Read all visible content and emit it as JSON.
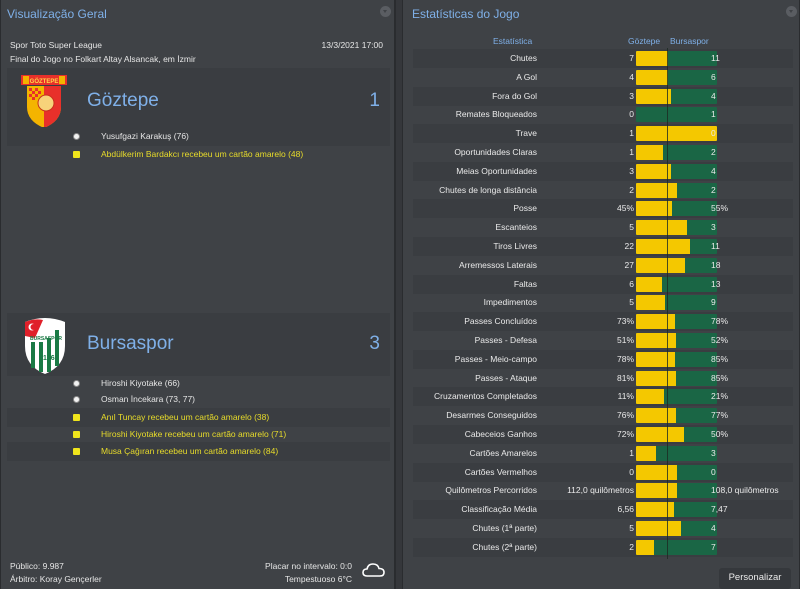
{
  "left_panel": {
    "title": "Visualização Geral",
    "competition": "Spor Toto Super League",
    "datetime": "13/3/2021 17:00",
    "venue": "Final do Jogo no Folkart Altay Alsancak, em İzmir",
    "home": {
      "name": "Göztepe",
      "score": "1",
      "logo": "goztepe-crest",
      "events": [
        {
          "type": "goal",
          "icon": "ball-icon",
          "text": "Yusufgazi Karakuş (76)"
        },
        {
          "type": "yellow-card",
          "icon": "yellow-card-icon",
          "text": "Abdülkerim Bardakcı recebeu um cartão amarelo (48)"
        }
      ]
    },
    "away": {
      "name": "Bursaspor",
      "score": "3",
      "logo": "bursaspor-crest",
      "events": [
        {
          "type": "goal",
          "icon": "ball-icon",
          "text": "Hiroshi Kiyotake (66)"
        },
        {
          "type": "goal",
          "icon": "ball-icon",
          "text": "Osman İncekara (73, 77)"
        },
        {
          "type": "yellow-card",
          "icon": "yellow-card-icon",
          "text": "Anıl Tuncay recebeu um cartão amarelo (38)"
        },
        {
          "type": "yellow-card",
          "icon": "yellow-card-icon",
          "text": "Hiroshi Kiyotake recebeu um cartão amarelo (71)"
        },
        {
          "type": "yellow-card",
          "icon": "yellow-card-icon",
          "text": "Musa Çağıran recebeu um cartão amarelo (84)"
        }
      ]
    },
    "footer": {
      "attendance": "Público: 9.987",
      "referee": "Árbitro: Koray Gençerler",
      "halftime": "Placar no intervalo: 0:0",
      "weather": "Tempestuoso 6°C",
      "weather_icon": "cloud-icon"
    }
  },
  "right_panel": {
    "title": "Estatísticas do Jogo",
    "header": {
      "stat": "Estatística",
      "home": "Göztepe",
      "away": "Bursaspor"
    },
    "colors": {
      "home": "#f4c800",
      "away": "#1a6645"
    },
    "stats": [
      {
        "label": "Chutes",
        "home": "7",
        "away": "11",
        "ratio": 0.389
      },
      {
        "label": "A Gol",
        "home": "4",
        "away": "6",
        "ratio": 0.4
      },
      {
        "label": "Fora do Gol",
        "home": "3",
        "away": "4",
        "ratio": 0.429
      },
      {
        "label": "Remates Bloqueados",
        "home": "0",
        "away": "1",
        "ratio": 0
      },
      {
        "label": "Trave",
        "home": "1",
        "away": "0",
        "ratio": 1
      },
      {
        "label": "Oportunidades Claras",
        "home": "1",
        "away": "2",
        "ratio": 0.333
      },
      {
        "label": "Meias Oportunidades",
        "home": "3",
        "away": "4",
        "ratio": 0.429
      },
      {
        "label": "Chutes de longa distância",
        "home": "2",
        "away": "2",
        "ratio": 0.5
      },
      {
        "label": "Posse",
        "home": "45%",
        "away": "55%",
        "ratio": 0.45
      },
      {
        "label": "Escanteios",
        "home": "5",
        "away": "3",
        "ratio": 0.625
      },
      {
        "label": "Tiros Livres",
        "home": "22",
        "away": "11",
        "ratio": 0.667
      },
      {
        "label": "Arremessos Laterais",
        "home": "27",
        "away": "18",
        "ratio": 0.6
      },
      {
        "label": "Faltas",
        "home": "6",
        "away": "13",
        "ratio": 0.316
      },
      {
        "label": "Impedimentos",
        "home": "5",
        "away": "9",
        "ratio": 0.357
      },
      {
        "label": "Passes Concluídos",
        "home": "73%",
        "away": "78%",
        "ratio": 0.483
      },
      {
        "label": "Passes - Defesa",
        "home": "51%",
        "away": "52%",
        "ratio": 0.495
      },
      {
        "label": "Passes - Meio-campo",
        "home": "78%",
        "away": "85%",
        "ratio": 0.479
      },
      {
        "label": "Passes - Ataque",
        "home": "81%",
        "away": "85%",
        "ratio": 0.488
      },
      {
        "label": "Cruzamentos Completados",
        "home": "11%",
        "away": "21%",
        "ratio": 0.344
      },
      {
        "label": "Desarmes Conseguidos",
        "home": "76%",
        "away": "77%",
        "ratio": 0.497
      },
      {
        "label": "Cabeceios Ganhos",
        "home": "72%",
        "away": "50%",
        "ratio": 0.59
      },
      {
        "label": "Cartões Amarelos",
        "home": "1",
        "away": "3",
        "ratio": 0.25
      },
      {
        "label": "Cartões Vermelhos",
        "home": "0",
        "away": "0",
        "ratio": 0.5
      },
      {
        "label": "Quilômetros Percorridos",
        "home": "112,0 quilômetros",
        "away": "108,0 quilômetros",
        "ratio": 0.509
      },
      {
        "label": "Classificação Média",
        "home": "6,56",
        "away": "7,47",
        "ratio": 0.468
      },
      {
        "label": "Chutes (1ª parte)",
        "home": "5",
        "away": "4",
        "ratio": 0.556
      },
      {
        "label": "Chutes (2ª parte)",
        "home": "2",
        "away": "7",
        "ratio": 0.222
      }
    ],
    "customize_button": "Personalizar"
  }
}
